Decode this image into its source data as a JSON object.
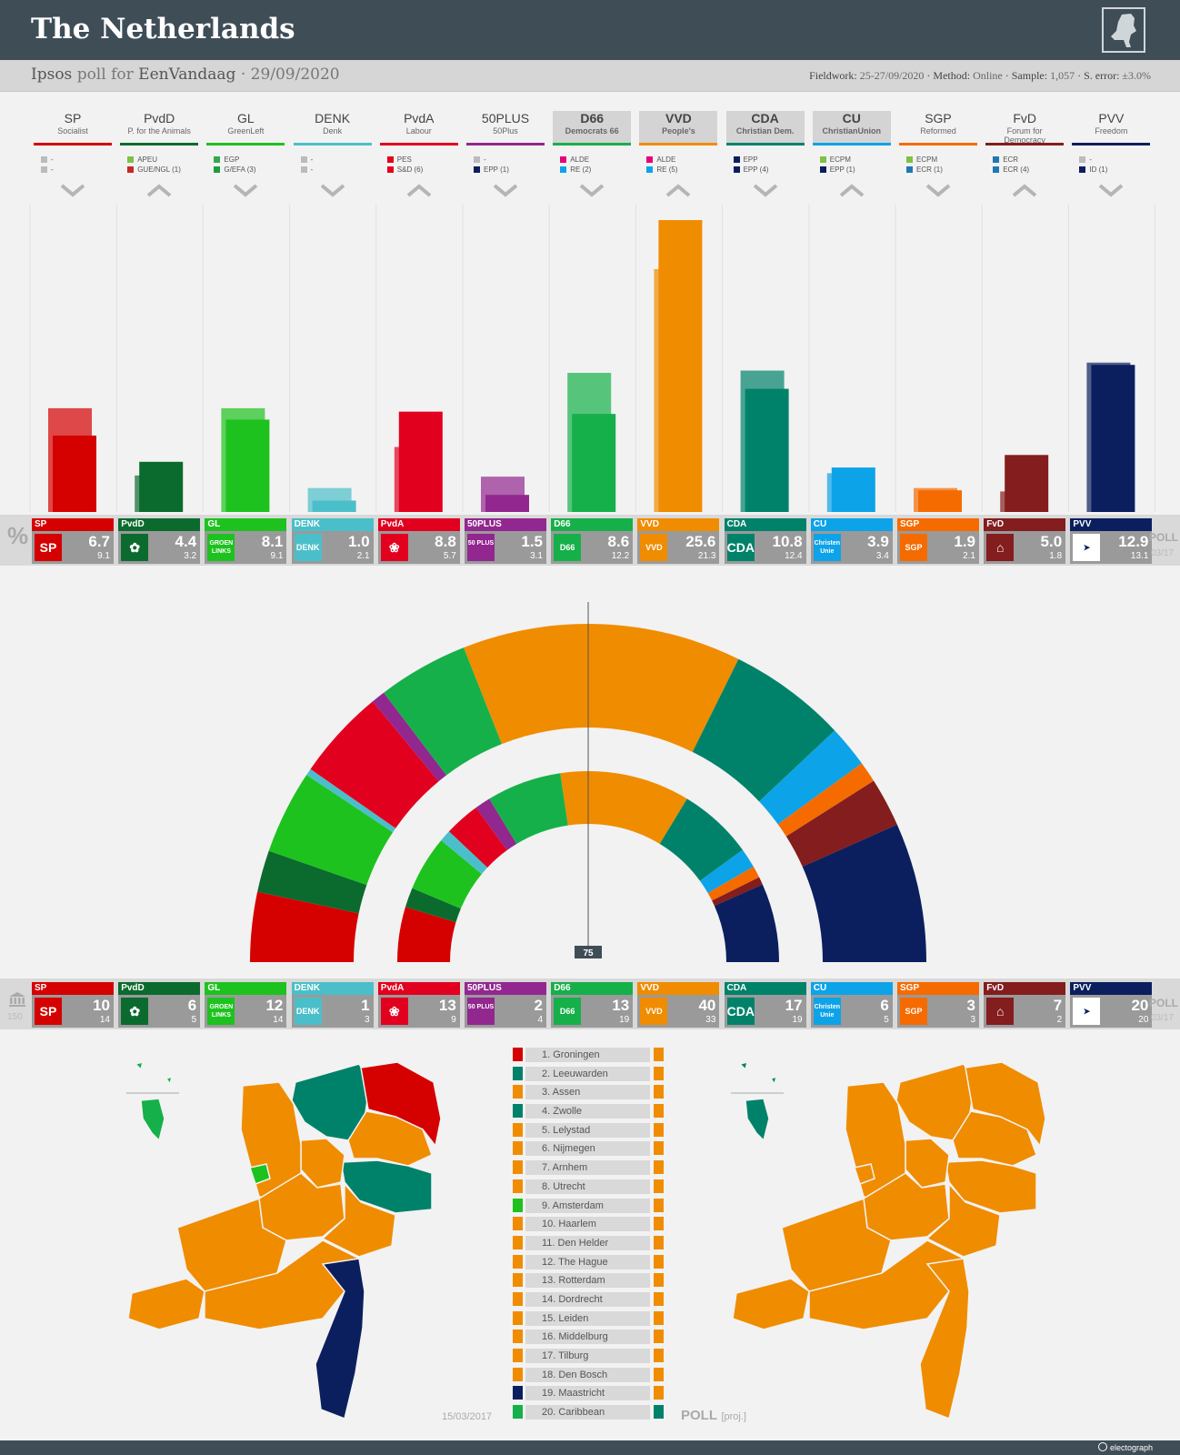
{
  "header": {
    "title": "The Netherlands"
  },
  "subheader": {
    "pollster": "Ipsos",
    "poll_for": "poll for",
    "client": "EenVandaag",
    "date": "· 29/09/2020",
    "fieldwork_label": "Fieldwork:",
    "fieldwork": "25-27/09/2020",
    "method_label": "· Method:",
    "method": "Online",
    "sample_label": "· Sample:",
    "sample": "1,057",
    "error_label": "· S. error:",
    "error": "±3.0%"
  },
  "colors": {
    "SP": "#d50000",
    "PvdD": "#0b6b2e",
    "GL": "#1ec21e",
    "DENK": "#4bbfc9",
    "PvdA": "#e2001f",
    "50PLUS": "#92278f",
    "D66": "#16b04a",
    "VVD": "#f08c00",
    "CDA": "#00826a",
    "CU": "#0da3e8",
    "SGP": "#f56b00",
    "FvD": "#841d1d",
    "PVV": "#0b1f5e",
    "FvD_group": "#1f78b4"
  },
  "parties": [
    {
      "abbr": "SP",
      "full": "Socialist",
      "highlight": false,
      "dir": "down",
      "groups": [
        {
          "c": "#bbbbbb",
          "t": "-"
        },
        {
          "c": "#bbbbbb",
          "t": "-"
        }
      ],
      "logo": "SP",
      "pct": "6.7",
      "prev": "9.1",
      "seats": "10",
      "seats_prev": "14"
    },
    {
      "abbr": "PvdD",
      "full": "P. for the Animals",
      "highlight": false,
      "dir": "up",
      "groups": [
        {
          "c": "#7dc242",
          "t": "APEU"
        },
        {
          "c": "#c62828",
          "t": "GUE/NGL (1)"
        }
      ],
      "logo": "✿",
      "pct": "4.4",
      "prev": "3.2",
      "seats": "6",
      "seats_prev": "5"
    },
    {
      "abbr": "GL",
      "full": "GreenLeft",
      "highlight": false,
      "dir": "down",
      "groups": [
        {
          "c": "#36a852",
          "t": "EGP"
        },
        {
          "c": "#1b9e3e",
          "t": "G/EFA (3)"
        }
      ],
      "logo": "GROEN LINKS",
      "pct": "8.1",
      "prev": "9.1",
      "seats": "12",
      "seats_prev": "14"
    },
    {
      "abbr": "DENK",
      "full": "Denk",
      "highlight": false,
      "dir": "down",
      "groups": [
        {
          "c": "#bbbbbb",
          "t": "-"
        },
        {
          "c": "#bbbbbb",
          "t": "-"
        }
      ],
      "logo": "DENK",
      "pct": "1.0",
      "prev": "2.1",
      "seats": "1",
      "seats_prev": "3"
    },
    {
      "abbr": "PvdA",
      "full": "Labour",
      "highlight": false,
      "dir": "up",
      "groups": [
        {
          "c": "#e3001b",
          "t": "PES"
        },
        {
          "c": "#e3001b",
          "t": "S&D (6)"
        }
      ],
      "logo": "❀",
      "pct": "8.8",
      "prev": "5.7",
      "seats": "13",
      "seats_prev": "9"
    },
    {
      "abbr": "50PLUS",
      "full": "50Plus",
      "highlight": false,
      "dir": "down",
      "groups": [
        {
          "c": "#bbbbbb",
          "t": "-"
        },
        {
          "c": "#0b1f5e",
          "t": "EPP (1)"
        }
      ],
      "logo": "50 PLUS",
      "pct": "1.5",
      "prev": "3.1",
      "seats": "2",
      "seats_prev": "4"
    },
    {
      "abbr": "D66",
      "full": "Democrats 66",
      "highlight": true,
      "dir": "down",
      "groups": [
        {
          "c": "#e5007d",
          "t": "ALDE"
        },
        {
          "c": "#0da3e8",
          "t": "RE (2)"
        }
      ],
      "logo": "D66",
      "pct": "8.6",
      "prev": "12.2",
      "seats": "13",
      "seats_prev": "19"
    },
    {
      "abbr": "VVD",
      "full": "People's",
      "highlight": true,
      "dir": "up",
      "groups": [
        {
          "c": "#e5007d",
          "t": "ALDE"
        },
        {
          "c": "#0da3e8",
          "t": "RE (5)"
        }
      ],
      "logo": "VVD",
      "pct": "25.6",
      "prev": "21.3",
      "seats": "40",
      "seats_prev": "33"
    },
    {
      "abbr": "CDA",
      "full": "Christian Dem.",
      "highlight": true,
      "dir": "down",
      "groups": [
        {
          "c": "#0b1f5e",
          "t": "EPP"
        },
        {
          "c": "#0b1f5e",
          "t": "EPP (4)"
        }
      ],
      "logo": "CDA",
      "pct": "10.8",
      "prev": "12.4",
      "seats": "17",
      "seats_prev": "19"
    },
    {
      "abbr": "CU",
      "full": "ChristianUnion",
      "highlight": true,
      "dir": "up",
      "groups": [
        {
          "c": "#7dc242",
          "t": "ECPM"
        },
        {
          "c": "#0b1f5e",
          "t": "EPP (1)"
        }
      ],
      "logo": "Christen Unie",
      "pct": "3.9",
      "prev": "3.4",
      "seats": "6",
      "seats_prev": "5"
    },
    {
      "abbr": "SGP",
      "full": "Reformed",
      "highlight": false,
      "dir": "down",
      "groups": [
        {
          "c": "#7dc242",
          "t": "ECPM"
        },
        {
          "c": "#1f78b4",
          "t": "ECR (1)"
        }
      ],
      "logo": "SGP",
      "pct": "1.9",
      "prev": "2.1",
      "seats": "3",
      "seats_prev": "3"
    },
    {
      "abbr": "FvD",
      "full": "Forum for Democracy",
      "highlight": false,
      "dir": "up",
      "groups": [
        {
          "c": "#1f78b4",
          "t": "ECR"
        },
        {
          "c": "#1f78b4",
          "t": "ECR (4)"
        }
      ],
      "logo": "⌂",
      "pct": "5.0",
      "prev": "1.8",
      "seats": "7",
      "seats_prev": "2"
    },
    {
      "abbr": "PVV",
      "full": "Freedom",
      "highlight": false,
      "dir": "down",
      "groups": [
        {
          "c": "#bbbbbb",
          "t": "-"
        },
        {
          "c": "#0b1f5e",
          "t": "ID (1)"
        }
      ],
      "logo": "➤",
      "pct": "12.9",
      "prev": "13.1",
      "seats": "20",
      "seats_prev": "20"
    }
  ],
  "pct_strip": {
    "symbol": "%",
    "poll_label": "POLL",
    "poll_date": "03/17"
  },
  "seats_strip": {
    "total": "150",
    "poll_label": "POLL",
    "poll_date": "03/17"
  },
  "hemicycle": {
    "majority_label": "75"
  },
  "regions": {
    "items": [
      {
        "label": "1. Groningen",
        "prev": "SP",
        "now": "VVD"
      },
      {
        "label": "2. Leeuwarden",
        "prev": "CDA",
        "now": "VVD"
      },
      {
        "label": "3. Assen",
        "prev": "VVD",
        "now": "VVD"
      },
      {
        "label": "4. Zwolle",
        "prev": "CDA",
        "now": "VVD"
      },
      {
        "label": "5. Lelystad",
        "prev": "VVD",
        "now": "VVD"
      },
      {
        "label": "6. Nijmegen",
        "prev": "VVD",
        "now": "VVD"
      },
      {
        "label": "7. Arnhem",
        "prev": "VVD",
        "now": "VVD"
      },
      {
        "label": "8. Utrecht",
        "prev": "VVD",
        "now": "VVD"
      },
      {
        "label": "9. Amsterdam",
        "prev": "GL",
        "now": "VVD"
      },
      {
        "label": "10. Haarlem",
        "prev": "VVD",
        "now": "VVD"
      },
      {
        "label": "11. Den Helder",
        "prev": "VVD",
        "now": "VVD"
      },
      {
        "label": "12. The Hague",
        "prev": "VVD",
        "now": "VVD"
      },
      {
        "label": "13. Rotterdam",
        "prev": "VVD",
        "now": "VVD"
      },
      {
        "label": "14. Dordrecht",
        "prev": "VVD",
        "now": "VVD"
      },
      {
        "label": "15. Leiden",
        "prev": "VVD",
        "now": "VVD"
      },
      {
        "label": "16. Middelburg",
        "prev": "VVD",
        "now": "VVD"
      },
      {
        "label": "17. Tilburg",
        "prev": "VVD",
        "now": "VVD"
      },
      {
        "label": "18. Den Bosch",
        "prev": "VVD",
        "now": "VVD"
      },
      {
        "label": "19. Maastricht",
        "prev": "PVV",
        "now": "VVD"
      },
      {
        "label": "20. Caribbean",
        "prev": "D66",
        "now": "CDA"
      }
    ],
    "left_map_label": "15/03/2017",
    "right_map_label": "POLL",
    "right_map_sub": "[proj.]"
  },
  "footer": {
    "brand": "electograph"
  },
  "chart_data": [
    {
      "type": "bar",
      "title": "",
      "categories": [
        "SP",
        "PvdD",
        "GL",
        "DENK",
        "PvdA",
        "50PLUS",
        "D66",
        "VVD",
        "CDA",
        "CU",
        "SGP",
        "FvD",
        "PVV"
      ],
      "series": [
        {
          "name": "POLL",
          "values": [
            6.7,
            4.4,
            8.1,
            1.0,
            8.8,
            1.5,
            8.6,
            25.6,
            10.8,
            3.9,
            1.9,
            5.0,
            12.9
          ]
        },
        {
          "name": "03/17",
          "values": [
            9.1,
            3.2,
            9.1,
            2.1,
            5.7,
            3.1,
            12.2,
            21.3,
            12.4,
            3.4,
            2.1,
            1.8,
            13.1
          ]
        }
      ],
      "ylim": [
        0,
        26
      ]
    },
    {
      "type": "pie",
      "title": "",
      "categories": [
        "SP",
        "PvdD",
        "GL",
        "DENK",
        "PvdA",
        "50PLUS",
        "D66",
        "VVD",
        "CDA",
        "CU",
        "SGP",
        "FvD",
        "PVV"
      ],
      "series": [
        {
          "name": "POLL",
          "values": [
            10,
            6,
            12,
            1,
            13,
            2,
            13,
            40,
            17,
            6,
            3,
            7,
            20
          ]
        },
        {
          "name": "03/17",
          "values": [
            14,
            5,
            14,
            3,
            9,
            4,
            19,
            33,
            19,
            5,
            3,
            2,
            20
          ]
        }
      ]
    }
  ]
}
